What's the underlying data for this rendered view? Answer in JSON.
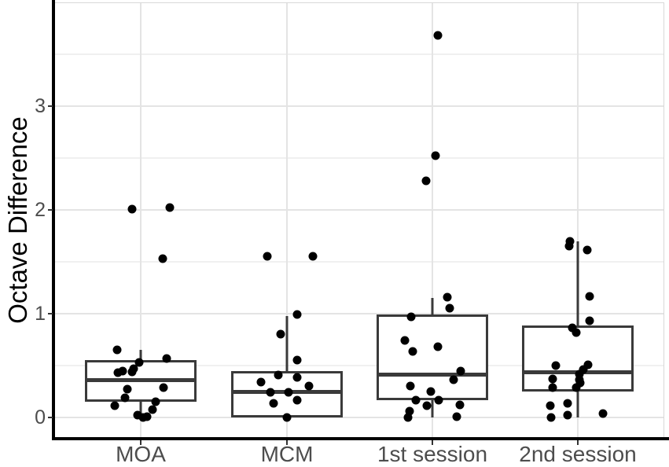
{
  "chart_data": {
    "type": "boxplot",
    "title": "",
    "xlabel": "",
    "ylabel": "Octave Difference",
    "categories": [
      "MOA",
      "MCM",
      "1st session",
      "2nd session"
    ],
    "y_ticks": [
      0,
      1,
      2,
      3
    ],
    "y_minor_ticks": [
      0.5,
      1.5,
      2.5,
      3.5
    ],
    "ylim": [
      -0.2,
      4.0
    ],
    "grid": "horizontal major+minor, vertical major at categories",
    "legend_position": "none",
    "style": {
      "box_color": "#3a3a3a",
      "point_color": "#000000",
      "grid_major_color": "#e4e4e4",
      "grid_minor_color": "#f0f0f0",
      "axis_line_color": "#000000",
      "tick_label_color": "#4d4d4d",
      "axis_title_color": "#000000",
      "background": "#ffffff"
    },
    "groups": [
      {
        "label": "MOA",
        "box": {
          "whisker_low": 0.0,
          "q1": 0.15,
          "median": 0.36,
          "q3": 0.55,
          "whisker_high": 0.65,
          "has_lower_whisker": true
        },
        "points": [
          [
            -11,
            2.01
          ],
          [
            37,
            2.02
          ],
          [
            28,
            1.53
          ],
          [
            -30,
            0.65
          ],
          [
            33,
            0.57
          ],
          [
            -2,
            0.53
          ],
          [
            -9,
            0.47
          ],
          [
            -23,
            0.45
          ],
          [
            -11,
            0.44
          ],
          [
            -29,
            0.43
          ],
          [
            29,
            0.29
          ],
          [
            -17,
            0.27
          ],
          [
            -20,
            0.19
          ],
          [
            19,
            0.15
          ],
          [
            -33,
            0.11
          ],
          [
            15,
            0.075
          ],
          [
            -4,
            0.02
          ],
          [
            8,
            0.01
          ],
          [
            3,
            0.0
          ]
        ]
      },
      {
        "label": "MCM",
        "box": {
          "whisker_low": 0.0,
          "q1": 0.0,
          "median": 0.25,
          "q3": 0.445,
          "whisker_high": 0.98,
          "has_lower_whisker": false
        },
        "points": [
          [
            -25,
            1.55
          ],
          [
            33,
            1.55
          ],
          [
            13,
            0.99
          ],
          [
            -8,
            0.8
          ],
          [
            13,
            0.55
          ],
          [
            -11,
            0.41
          ],
          [
            13,
            0.39
          ],
          [
            -33,
            0.34
          ],
          [
            28,
            0.3
          ],
          [
            -21,
            0.24
          ],
          [
            2,
            0.24
          ],
          [
            13,
            0.17
          ],
          [
            -17,
            0.14
          ],
          [
            0,
            0.0
          ]
        ]
      },
      {
        "label": "1st session",
        "box": {
          "whisker_low": 0.0,
          "q1": 0.165,
          "median": 0.42,
          "q3": 0.99,
          "whisker_high": 1.15,
          "has_lower_whisker": true
        },
        "points": [
          [
            7,
            3.68
          ],
          [
            4,
            2.52
          ],
          [
            -8,
            2.28
          ],
          [
            19,
            1.16
          ],
          [
            22,
            1.05
          ],
          [
            -27,
            0.97
          ],
          [
            -35,
            0.74
          ],
          [
            7,
            0.68
          ],
          [
            -25,
            0.64
          ],
          [
            36,
            0.45
          ],
          [
            27,
            0.36
          ],
          [
            -28,
            0.3
          ],
          [
            -2,
            0.25
          ],
          [
            -21,
            0.17
          ],
          [
            8,
            0.17
          ],
          [
            35,
            0.12
          ],
          [
            -7,
            0.11
          ],
          [
            -29,
            0.06
          ],
          [
            31,
            0.01
          ],
          [
            -31,
            0.0
          ]
        ]
      },
      {
        "label": "2nd session",
        "box": {
          "whisker_low": 0.0,
          "q1": 0.25,
          "median": 0.44,
          "q3": 0.89,
          "whisker_high": 1.7,
          "has_lower_whisker": true
        },
        "points": [
          [
            -10,
            1.7
          ],
          [
            -11,
            1.65
          ],
          [
            12,
            1.61
          ],
          [
            15,
            1.17
          ],
          [
            15,
            0.93
          ],
          [
            -7,
            0.86
          ],
          [
            -2,
            0.82
          ],
          [
            -28,
            0.5
          ],
          [
            13,
            0.51
          ],
          [
            7,
            0.46
          ],
          [
            2,
            0.42
          ],
          [
            -32,
            0.37
          ],
          [
            2,
            0.36
          ],
          [
            3,
            0.33
          ],
          [
            -32,
            0.29
          ],
          [
            -2,
            0.29
          ],
          [
            -13,
            0.14
          ],
          [
            -35,
            0.11
          ],
          [
            -13,
            0.02
          ],
          [
            32,
            0.04
          ],
          [
            -34,
            0.0
          ]
        ]
      }
    ]
  }
}
